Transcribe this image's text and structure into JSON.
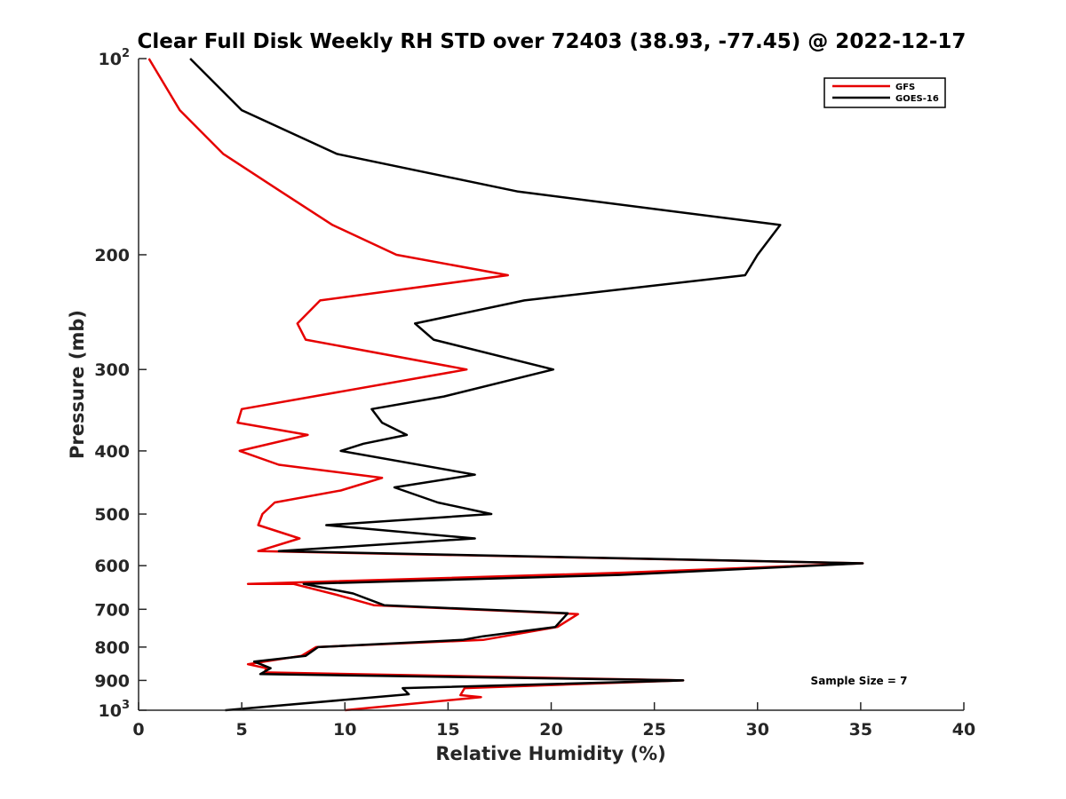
{
  "chart_data": {
    "type": "line",
    "title": "Clear Full Disk Weekly RH STD over 72403 (38.93, -77.45) @ 2022-12-17",
    "xlabel": "Relative Humidity (%)",
    "ylabel": "Pressure (mb)",
    "xlim": [
      0,
      40
    ],
    "ylim": [
      100,
      1000
    ],
    "y_scale": "log",
    "y_reversed": true,
    "grid": false,
    "legend_position": "top-right",
    "x_ticks": [
      "0",
      "5",
      "10",
      "15",
      "20",
      "25",
      "30",
      "35",
      "40"
    ],
    "y_ticks": [
      {
        "value": 100,
        "base": "10",
        "sup": "2"
      },
      {
        "value": 200,
        "base": "200",
        "sup": ""
      },
      {
        "value": 300,
        "base": "300",
        "sup": ""
      },
      {
        "value": 400,
        "base": "400",
        "sup": ""
      },
      {
        "value": 500,
        "base": "500",
        "sup": ""
      },
      {
        "value": 600,
        "base": "600",
        "sup": ""
      },
      {
        "value": 700,
        "base": "700",
        "sup": ""
      },
      {
        "value": 800,
        "base": "800",
        "sup": ""
      },
      {
        "value": 900,
        "base": "900",
        "sup": ""
      },
      {
        "value": 1000,
        "base": "10",
        "sup": "3"
      }
    ],
    "series": [
      {
        "name": "GFS",
        "color": "#e60000",
        "points": [
          [
            0.5,
            100
          ],
          [
            2.0,
            120
          ],
          [
            4.1,
            140
          ],
          [
            6.9,
            160
          ],
          [
            9.4,
            180
          ],
          [
            12.5,
            200
          ],
          [
            17.9,
            215
          ],
          [
            8.8,
            235
          ],
          [
            7.7,
            255
          ],
          [
            8.1,
            270
          ],
          [
            15.9,
            300
          ],
          [
            5.0,
            345
          ],
          [
            4.8,
            362
          ],
          [
            8.2,
            378
          ],
          [
            4.9,
            400
          ],
          [
            6.8,
            420
          ],
          [
            11.8,
            440
          ],
          [
            9.8,
            460
          ],
          [
            6.6,
            480
          ],
          [
            6.0,
            500
          ],
          [
            5.8,
            520
          ],
          [
            7.8,
            545
          ],
          [
            5.8,
            570
          ],
          [
            35.1,
            595
          ],
          [
            23.6,
            615
          ],
          [
            5.3,
            640
          ],
          [
            7.5,
            640
          ],
          [
            9.6,
            665
          ],
          [
            11.4,
            690
          ],
          [
            21.3,
            712
          ],
          [
            20.3,
            745
          ],
          [
            16.7,
            780
          ],
          [
            8.6,
            800
          ],
          [
            7.9,
            825
          ],
          [
            5.3,
            850
          ],
          [
            6.2,
            862
          ],
          [
            6.1,
            875
          ],
          [
            26.4,
            900
          ],
          [
            15.8,
            925
          ],
          [
            15.6,
            948
          ],
          [
            16.6,
            955
          ],
          [
            10.0,
            1000
          ]
        ]
      },
      {
        "name": "GOES-16",
        "color": "#000000",
        "points": [
          [
            2.5,
            100
          ],
          [
            5.0,
            120
          ],
          [
            9.6,
            140
          ],
          [
            18.4,
            160
          ],
          [
            31.1,
            180
          ],
          [
            30.0,
            200
          ],
          [
            29.4,
            215
          ],
          [
            18.7,
            235
          ],
          [
            13.4,
            255
          ],
          [
            14.3,
            270
          ],
          [
            20.1,
            300
          ],
          [
            14.8,
            330
          ],
          [
            11.3,
            345
          ],
          [
            11.8,
            362
          ],
          [
            13.0,
            378
          ],
          [
            10.9,
            390
          ],
          [
            9.8,
            400
          ],
          [
            16.3,
            435
          ],
          [
            12.4,
            455
          ],
          [
            14.5,
            480
          ],
          [
            17.1,
            500
          ],
          [
            9.1,
            520
          ],
          [
            16.3,
            545
          ],
          [
            6.8,
            570
          ],
          [
            35.1,
            595
          ],
          [
            23.3,
            620
          ],
          [
            8.0,
            640
          ],
          [
            10.4,
            662
          ],
          [
            11.9,
            690
          ],
          [
            20.8,
            710
          ],
          [
            20.2,
            745
          ],
          [
            16.7,
            770
          ],
          [
            15.7,
            780
          ],
          [
            8.7,
            800
          ],
          [
            8.1,
            825
          ],
          [
            5.6,
            842
          ],
          [
            6.4,
            862
          ],
          [
            5.9,
            880
          ],
          [
            26.4,
            900
          ],
          [
            12.8,
            925
          ],
          [
            13.1,
            945
          ],
          [
            4.2,
            1000
          ]
        ]
      }
    ],
    "annotations": [
      {
        "text": "Sample Size = 7"
      }
    ]
  }
}
